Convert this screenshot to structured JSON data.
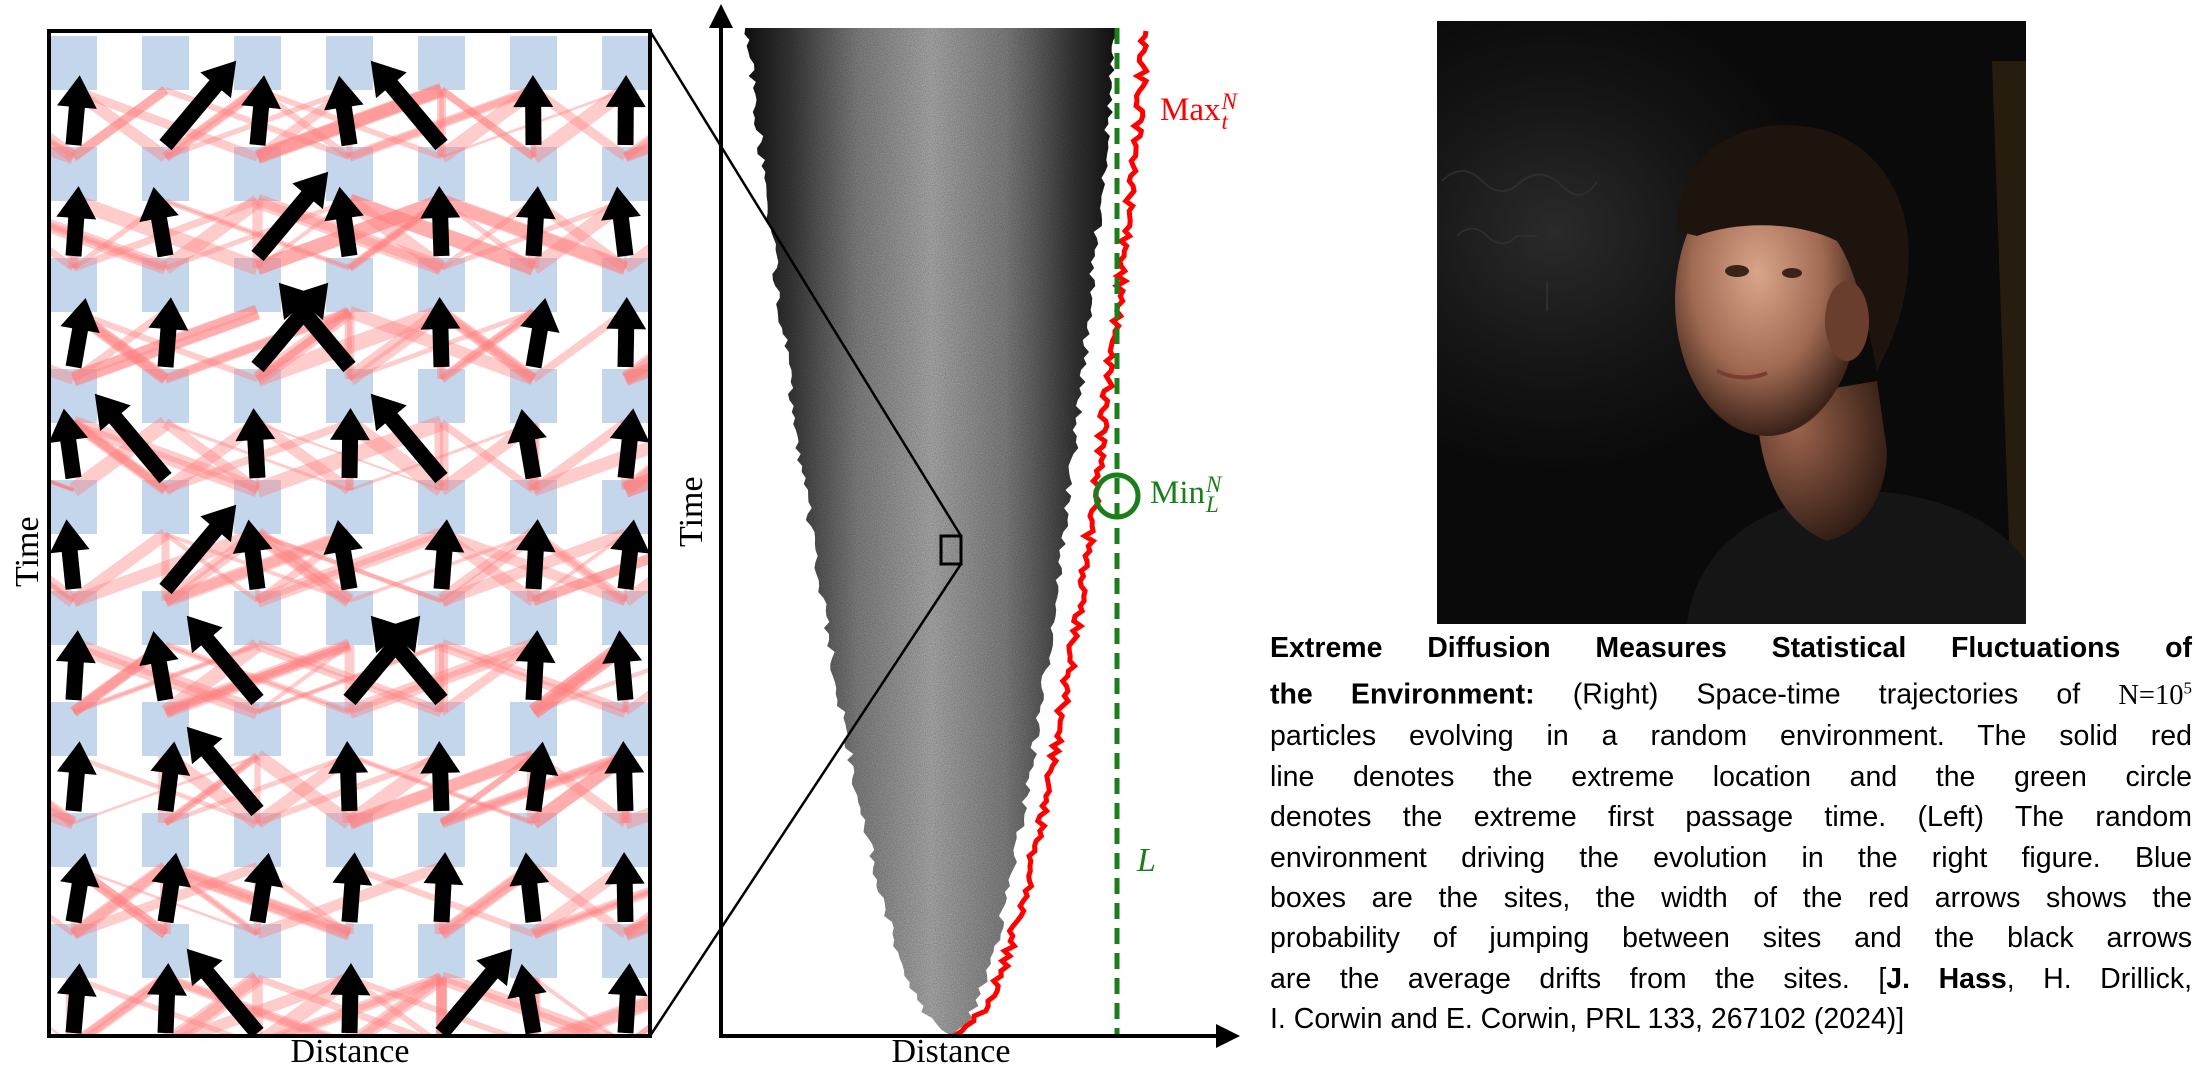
{
  "left_panel": {
    "ylabel": "Time",
    "xlabel": "Distance",
    "colors": {
      "site": "#c3d6ec",
      "jump_arrow": "#ff8080",
      "drift_arrow": "#000000"
    }
  },
  "right_panel": {
    "ylabel": "Time",
    "xlabel": "Distance",
    "max_label": {
      "base": "Max",
      "sup": "N",
      "sub": "t"
    },
    "min_label": {
      "base": "Min",
      "sup": "N",
      "sub": "L"
    },
    "threshold_label": "L",
    "colors": {
      "extreme_location": "#ff0000",
      "threshold": "#1a7f1a"
    }
  },
  "photo": {
    "description_icon": "portrait-photo"
  },
  "caption": {
    "title": "Extreme Diffusion Measures Statistical Fluctuations of",
    "title_cont": "the Environment:",
    "line2_text": " (Right) Space-time trajectories of ",
    "math_n": "N=10",
    "math_exp": "5",
    "line3": "particles evolving in a random environment. The solid red",
    "line4": "line denotes the extreme location and the green circle",
    "line5": "denotes the extreme first passage time. (Left) The random",
    "line6": "environment driving the evolution in the right figure. Blue",
    "line7": "boxes are the sites, the width of the red arrows shows the",
    "line8": "probability of jumping between sites and the black arrows",
    "line9_pre": "are the average drifts from the sites. [",
    "author_bold": "J. Hass",
    "line9_post": ", H. Drillick,",
    "line10": "I. Corwin and E. Corwin, PRL 133, 267102 (2024)]"
  }
}
